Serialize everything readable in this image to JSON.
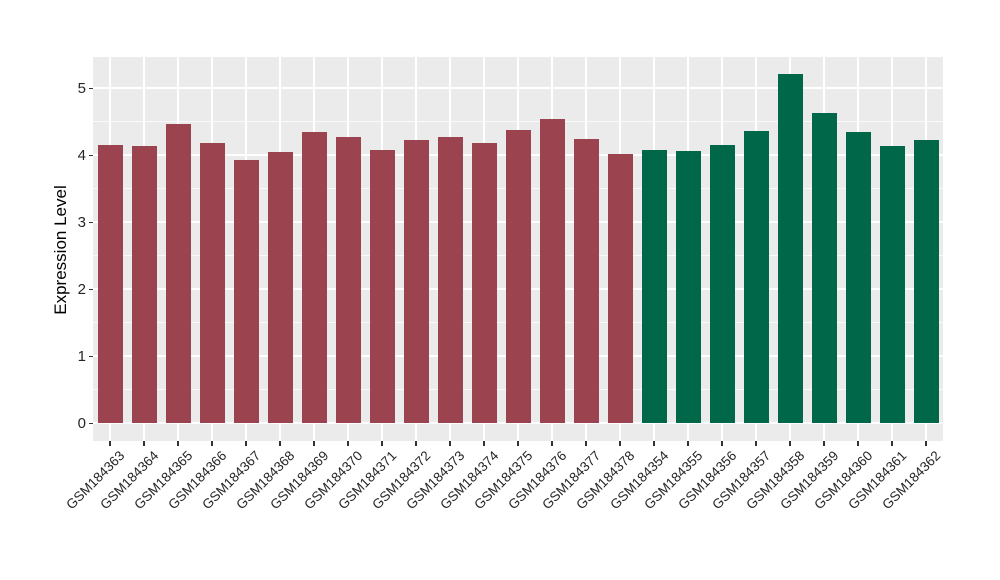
{
  "chart_data": {
    "type": "bar",
    "title": "",
    "xlabel": "",
    "ylabel": "Expression Level",
    "yticks": [
      0,
      1,
      2,
      3,
      4,
      5
    ],
    "ylim": [
      0,
      5.5
    ],
    "grid": "white major and minor horizontal lines plus vertical category lines on gray panel",
    "legend": "none",
    "groups": {
      "group-1": {
        "color": "#9B4450"
      },
      "group-2": {
        "color": "#006848"
      }
    },
    "bars": [
      {
        "label": "GSM184363",
        "value": 4.16,
        "group": "group-1"
      },
      {
        "label": "GSM184364",
        "value": 4.14,
        "group": "group-1"
      },
      {
        "label": "GSM184365",
        "value": 4.46,
        "group": "group-1"
      },
      {
        "label": "GSM184366",
        "value": 4.18,
        "group": "group-1"
      },
      {
        "label": "GSM184367",
        "value": 3.93,
        "group": "group-1"
      },
      {
        "label": "GSM184368",
        "value": 4.05,
        "group": "group-1"
      },
      {
        "label": "GSM184369",
        "value": 4.35,
        "group": "group-1"
      },
      {
        "label": "GSM184370",
        "value": 4.28,
        "group": "group-1"
      },
      {
        "label": "GSM184371",
        "value": 4.08,
        "group": "group-1"
      },
      {
        "label": "GSM184372",
        "value": 4.23,
        "group": "group-1"
      },
      {
        "label": "GSM184373",
        "value": 4.27,
        "group": "group-1"
      },
      {
        "label": "GSM184374",
        "value": 4.19,
        "group": "group-1"
      },
      {
        "label": "GSM184375",
        "value": 4.38,
        "group": "group-1"
      },
      {
        "label": "GSM184376",
        "value": 4.54,
        "group": "group-1"
      },
      {
        "label": "GSM184377",
        "value": 4.24,
        "group": "group-1"
      },
      {
        "label": "GSM184378",
        "value": 4.02,
        "group": "group-1"
      },
      {
        "label": "GSM184354",
        "value": 4.08,
        "group": "group-2"
      },
      {
        "label": "GSM184355",
        "value": 4.07,
        "group": "group-2"
      },
      {
        "label": "GSM184356",
        "value": 4.15,
        "group": "group-2"
      },
      {
        "label": "GSM184357",
        "value": 4.37,
        "group": "group-2"
      },
      {
        "label": "GSM184358",
        "value": 5.21,
        "group": "group-2"
      },
      {
        "label": "GSM184359",
        "value": 4.63,
        "group": "group-2"
      },
      {
        "label": "GSM184360",
        "value": 4.35,
        "group": "group-2"
      },
      {
        "label": "GSM184361",
        "value": 4.14,
        "group": "group-2"
      },
      {
        "label": "GSM184362",
        "value": 4.23,
        "group": "group-2"
      }
    ]
  },
  "style": {
    "figure_bg": "#FFFFFF",
    "panel_bg": "#EBEBEB",
    "grid_color": "#FFFFFF",
    "bar_red": "#9B4450",
    "bar_green": "#006848",
    "tick_text_color": "#262626",
    "tick_mark_color": "#333333",
    "axis_title_color": "#000000"
  }
}
